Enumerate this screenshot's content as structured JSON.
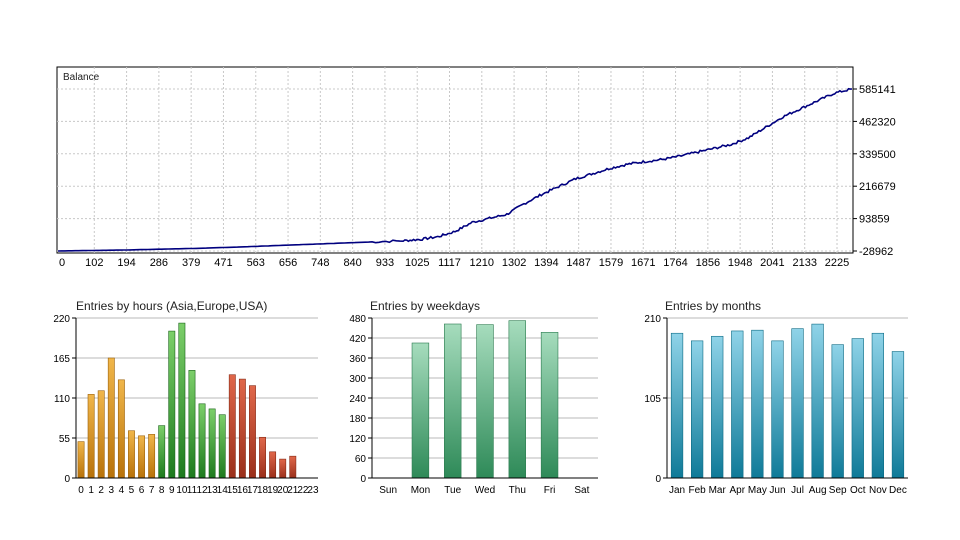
{
  "chart_data": [
    {
      "type": "line",
      "title": "Balance",
      "xlabel": "",
      "ylabel": "",
      "x_tick_labels": [
        "0",
        "102",
        "194",
        "286",
        "379",
        "471",
        "563",
        "656",
        "748",
        "840",
        "933",
        "1025",
        "1117",
        "1210",
        "1302",
        "1394",
        "1487",
        "1579",
        "1671",
        "1764",
        "1856",
        "1948",
        "2041",
        "2133",
        "2225"
      ],
      "y_tick_labels": [
        "585141",
        "462320",
        "339500",
        "216679",
        "93859",
        "-28962"
      ],
      "ylim": [
        -28962,
        585141
      ],
      "xlim": [
        0,
        2300
      ],
      "grid": true,
      "series": [
        {
          "color": "#00007f",
          "x": [
            0,
            100,
            200,
            300,
            400,
            500,
            600,
            700,
            800,
            900,
            1000,
            1050,
            1100,
            1150,
            1200,
            1250,
            1300,
            1350,
            1400,
            1450,
            1500,
            1550,
            1600,
            1650,
            1700,
            1750,
            1800,
            1850,
            1900,
            1950,
            2000,
            2050,
            2100,
            2150,
            2200,
            2250,
            2300
          ],
          "y": [
            -28962,
            -27000,
            -25000,
            -22000,
            -19000,
            -15000,
            -10000,
            -5000,
            0,
            5000,
            10000,
            15000,
            25000,
            45000,
            80000,
            95000,
            110000,
            150000,
            185000,
            215000,
            245000,
            265000,
            285000,
            300000,
            310000,
            318000,
            330000,
            345000,
            360000,
            375000,
            400000,
            440000,
            480000,
            510000,
            540000,
            570000,
            585141
          ]
        }
      ]
    },
    {
      "type": "bar",
      "title": "Entries by hours (Asia,Europe,USA)",
      "categories": [
        "0",
        "1",
        "2",
        "3",
        "4",
        "5",
        "6",
        "7",
        "8",
        "9",
        "10",
        "11",
        "12",
        "13",
        "14",
        "15",
        "16",
        "17",
        "18",
        "19",
        "20",
        "21",
        "22",
        "23"
      ],
      "values": [
        50,
        115,
        120,
        165,
        135,
        65,
        58,
        60,
        72,
        202,
        213,
        148,
        102,
        95,
        87,
        142,
        136,
        127,
        56,
        36,
        26,
        30,
        0,
        0
      ],
      "ylim": [
        0,
        220
      ],
      "y_tick_labels": [
        "220",
        "165",
        "110",
        "55",
        "0"
      ],
      "colors": {
        "asia": "#c8860e",
        "europe": "#2f8b2f",
        "usa": "#b4402a"
      },
      "grid": true
    },
    {
      "type": "bar",
      "title": "Entries by weekdays",
      "categories": [
        "Sun",
        "Mon",
        "Tue",
        "Wed",
        "Thu",
        "Fri",
        "Sat"
      ],
      "values": [
        0,
        405,
        462,
        460,
        472,
        437,
        0
      ],
      "ylim": [
        0,
        480
      ],
      "y_tick_labels": [
        "480",
        "420",
        "360",
        "300",
        "240",
        "180",
        "120",
        "60",
        "0"
      ],
      "color": "#3a9d6a",
      "grid": true
    },
    {
      "type": "bar",
      "title": "Entries by months",
      "categories": [
        "Jan",
        "Feb",
        "Mar",
        "Apr",
        "May",
        "Jun",
        "Jul",
        "Aug",
        "Sep",
        "Oct",
        "Nov",
        "Dec"
      ],
      "values": [
        190,
        180,
        186,
        193,
        194,
        180,
        196,
        202,
        175,
        183,
        190,
        166
      ],
      "ylim": [
        0,
        210
      ],
      "y_tick_labels": [
        "210",
        "105",
        "0"
      ],
      "color": "#3aa0bf",
      "grid": true
    }
  ]
}
